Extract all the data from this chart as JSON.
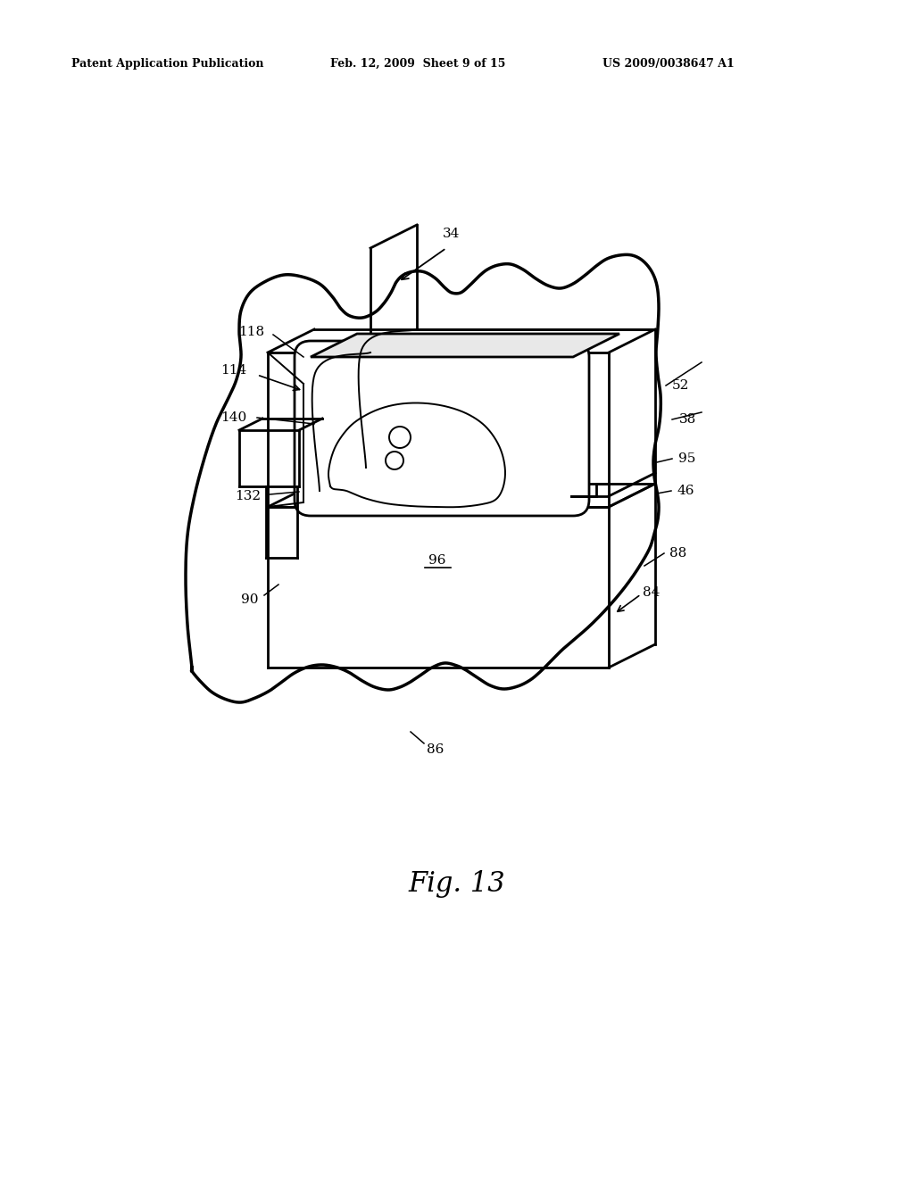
{
  "header_left": "Patent Application Publication",
  "header_mid": "Feb. 12, 2009  Sheet 9 of 15",
  "header_right": "US 2009/0038647 A1",
  "figure_label": "Fig. 13",
  "bg": "#ffffff",
  "lc": "#000000",
  "lw": 2.0,
  "lw_thin": 1.4,
  "lw_blob": 2.5,
  "fs_label": 11,
  "fs_header": 9,
  "fs_fig": 22
}
